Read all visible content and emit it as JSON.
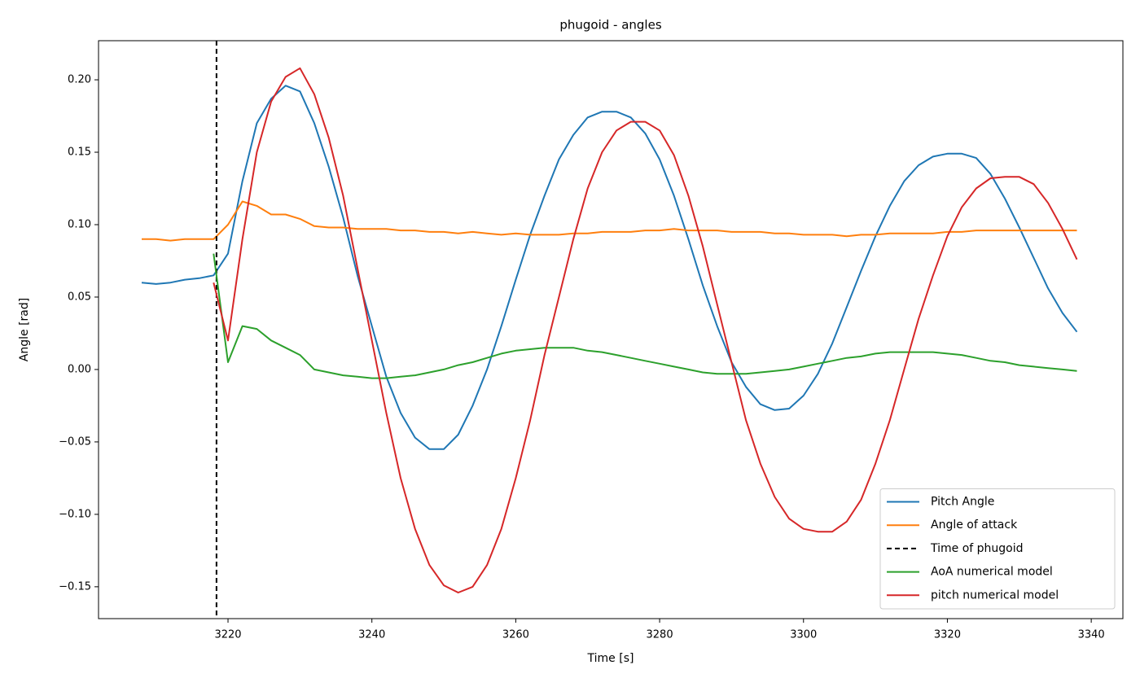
{
  "chart_data": {
    "type": "line",
    "title": "phugoid - angles",
    "xlabel": "Time [s]",
    "ylabel": "Angle [rad]",
    "x": [
      3208,
      3210,
      3212,
      3214,
      3216,
      3218,
      3220,
      3222,
      3224,
      3226,
      3228,
      3230,
      3232,
      3234,
      3236,
      3238,
      3240,
      3242,
      3244,
      3246,
      3248,
      3250,
      3252,
      3254,
      3256,
      3258,
      3260,
      3262,
      3264,
      3266,
      3268,
      3270,
      3272,
      3274,
      3276,
      3278,
      3280,
      3282,
      3284,
      3286,
      3288,
      3290,
      3292,
      3294,
      3296,
      3298,
      3300,
      3302,
      3304,
      3306,
      3308,
      3310,
      3312,
      3314,
      3316,
      3318,
      3320,
      3322,
      3324,
      3326,
      3328,
      3330,
      3332,
      3334,
      3336,
      3338
    ],
    "series": [
      {
        "name": "Pitch Angle",
        "color": "#1f77b4",
        "values": [
          0.06,
          0.059,
          0.06,
          0.062,
          0.063,
          0.065,
          0.08,
          0.13,
          0.17,
          0.187,
          0.196,
          0.192,
          0.17,
          0.14,
          0.105,
          0.065,
          0.03,
          -0.005,
          -0.03,
          -0.047,
          -0.055,
          -0.055,
          -0.045,
          -0.025,
          0.0,
          0.03,
          0.062,
          0.093,
          0.12,
          0.145,
          0.162,
          0.174,
          0.178,
          0.178,
          0.174,
          0.163,
          0.145,
          0.12,
          0.09,
          0.058,
          0.03,
          0.005,
          -0.012,
          -0.024,
          -0.028,
          -0.027,
          -0.018,
          -0.003,
          0.018,
          0.043,
          0.068,
          0.092,
          0.113,
          0.13,
          0.141,
          0.147,
          0.149,
          0.149,
          0.146,
          0.135,
          0.118,
          0.098,
          0.077,
          0.056,
          0.039,
          0.026
        ]
      },
      {
        "name": "Angle of attack",
        "color": "#ff7f0e",
        "values": [
          0.09,
          0.09,
          0.089,
          0.09,
          0.09,
          0.09,
          0.1,
          0.116,
          0.113,
          0.107,
          0.107,
          0.104,
          0.099,
          0.098,
          0.098,
          0.097,
          0.097,
          0.097,
          0.096,
          0.096,
          0.095,
          0.095,
          0.094,
          0.095,
          0.094,
          0.093,
          0.094,
          0.093,
          0.093,
          0.093,
          0.094,
          0.094,
          0.095,
          0.095,
          0.095,
          0.096,
          0.096,
          0.097,
          0.096,
          0.096,
          0.096,
          0.095,
          0.095,
          0.095,
          0.094,
          0.094,
          0.093,
          0.093,
          0.093,
          0.092,
          0.093,
          0.093,
          0.094,
          0.094,
          0.094,
          0.094,
          0.095,
          0.095,
          0.096,
          0.096,
          0.096,
          0.096,
          0.096,
          0.096,
          0.096,
          0.096
        ]
      },
      {
        "name": "Time of phugoid",
        "color": "#000000",
        "type": "vline",
        "x": 3218.4,
        "dash": true
      },
      {
        "name": "AoA numerical model",
        "color": "#2ca02c",
        "values": [
          null,
          null,
          null,
          null,
          null,
          0.08,
          0.005,
          0.03,
          0.028,
          0.02,
          0.015,
          0.01,
          0.0,
          -0.002,
          -0.004,
          -0.005,
          -0.006,
          -0.006,
          -0.005,
          -0.004,
          -0.002,
          0.0,
          0.003,
          0.005,
          0.008,
          0.011,
          0.013,
          0.014,
          0.015,
          0.015,
          0.015,
          0.013,
          0.012,
          0.01,
          0.008,
          0.006,
          0.004,
          0.002,
          0.0,
          -0.002,
          -0.003,
          -0.003,
          -0.003,
          -0.002,
          -0.001,
          0.0,
          0.002,
          0.004,
          0.006,
          0.008,
          0.009,
          0.011,
          0.012,
          0.012,
          0.012,
          0.012,
          0.011,
          0.01,
          0.008,
          0.006,
          0.005,
          0.003,
          0.002,
          0.001,
          0.0,
          -0.001
        ]
      },
      {
        "name": "pitch numerical model",
        "color": "#d62728",
        "values": [
          null,
          null,
          null,
          null,
          null,
          0.06,
          0.02,
          0.09,
          0.15,
          0.185,
          0.202,
          0.208,
          0.19,
          0.16,
          0.12,
          0.07,
          0.02,
          -0.03,
          -0.075,
          -0.11,
          -0.135,
          -0.149,
          -0.154,
          -0.15,
          -0.135,
          -0.11,
          -0.075,
          -0.035,
          0.01,
          0.05,
          0.09,
          0.125,
          0.15,
          0.165,
          0.171,
          0.171,
          0.165,
          0.148,
          0.12,
          0.085,
          0.045,
          0.005,
          -0.035,
          -0.065,
          -0.088,
          -0.103,
          -0.11,
          -0.112,
          -0.112,
          -0.105,
          -0.09,
          -0.065,
          -0.035,
          0.0,
          0.035,
          0.065,
          0.092,
          0.112,
          0.125,
          0.132,
          0.133,
          0.133,
          0.128,
          0.115,
          0.097,
          0.076
        ]
      }
    ],
    "xlim": [
      3202,
      3344.4
    ],
    "ylim": [
      -0.172,
      0.227
    ],
    "xticks": [
      3220,
      3240,
      3260,
      3280,
      3300,
      3320,
      3340
    ],
    "yticks": [
      {
        "value": -0.15,
        "label": "−0.15"
      },
      {
        "value": -0.1,
        "label": "−0.10"
      },
      {
        "value": -0.05,
        "label": "−0.05"
      },
      {
        "value": 0,
        "label": "0.00"
      },
      {
        "value": 0.05,
        "label": "0.05"
      },
      {
        "value": 0.1,
        "label": "0.10"
      },
      {
        "value": 0.15,
        "label": "0.15"
      },
      {
        "value": 0.2,
        "label": "0.20"
      }
    ],
    "legend": "lower right",
    "grid": false
  }
}
